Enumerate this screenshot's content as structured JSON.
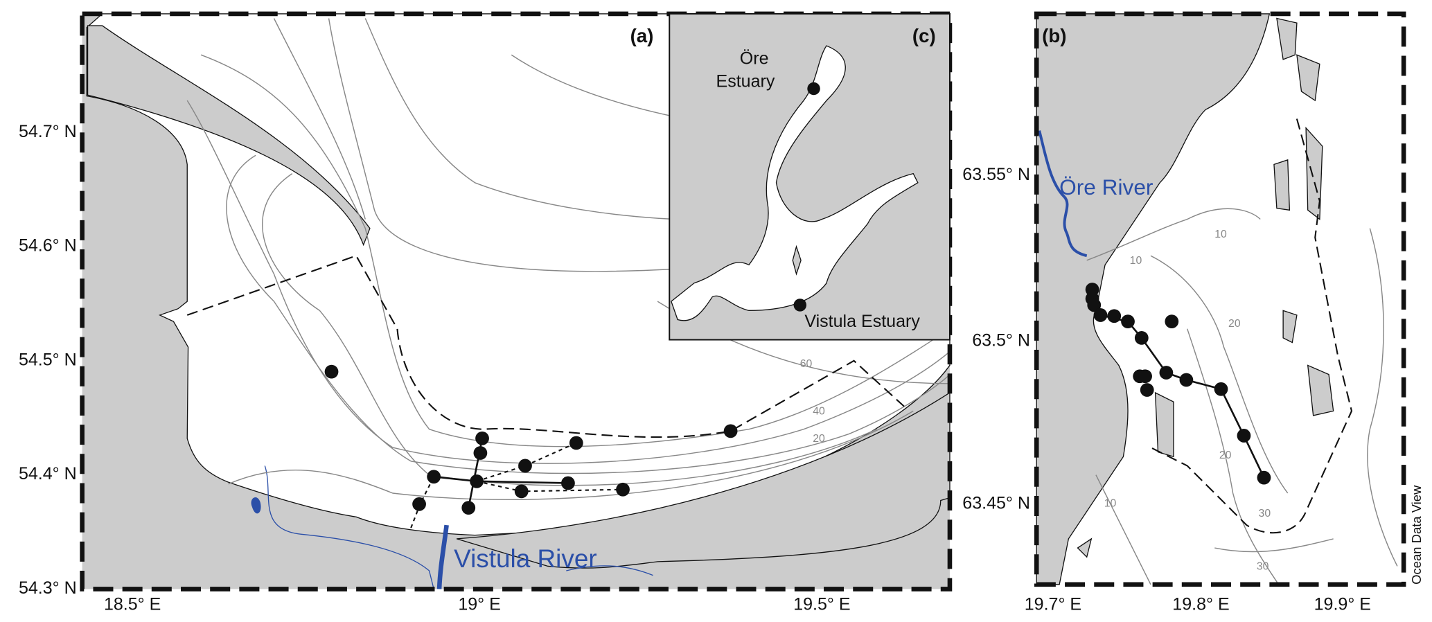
{
  "panel_a": {
    "label": "(a)",
    "y_ticks": [
      "54.7° N",
      "54.6° N",
      "54.5° N",
      "54.4° N",
      "54.3° N"
    ],
    "x_ticks": [
      "18.5° E",
      "19° E",
      "19.5° E"
    ],
    "river": "Vistula River",
    "contour_labels": [
      "60",
      "40",
      "20"
    ]
  },
  "panel_b": {
    "label": "(b)",
    "y_ticks": [
      "63.55° N",
      "63.5° N",
      "63.45° N"
    ],
    "x_ticks": [
      "19.7° E",
      "19.8° E",
      "19.9° E"
    ],
    "river": "Öre River",
    "contour_labels": [
      "10",
      "10",
      "20",
      "10",
      "20",
      "30",
      "30"
    ]
  },
  "panel_c": {
    "label": "(c)",
    "ore_label": [
      "Öre",
      "Estuary"
    ],
    "vistula_label": "Vistula Estuary"
  },
  "credit": "Ocean Data View"
}
